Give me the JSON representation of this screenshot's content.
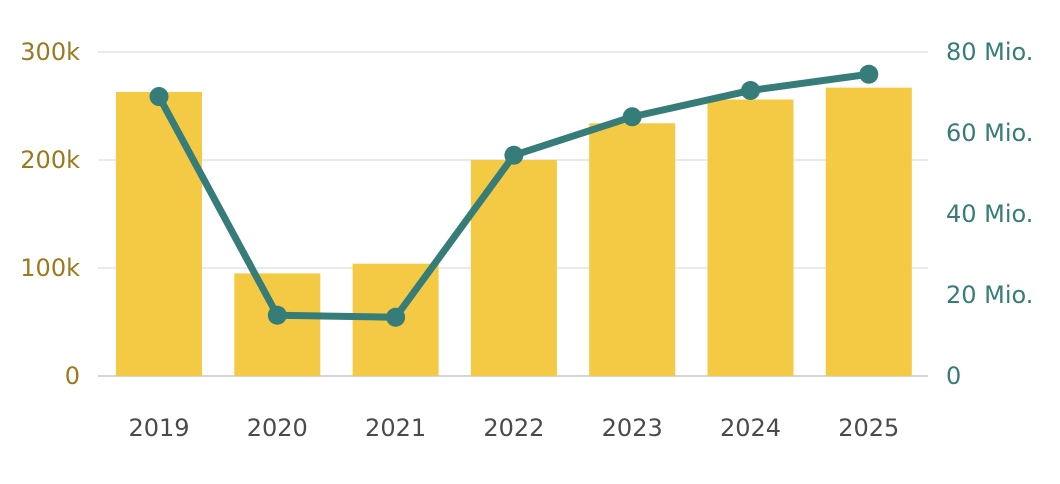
{
  "chart_data": {
    "type": "bar+line",
    "categories": [
      "2019",
      "2020",
      "2021",
      "2022",
      "2023",
      "2024",
      "2025"
    ],
    "series": [
      {
        "type": "bar",
        "axis": "left",
        "color": "#f4ca44",
        "values": [
          263000,
          95000,
          104000,
          200000,
          234000,
          256000,
          267000
        ]
      },
      {
        "type": "line",
        "axis": "right",
        "color": "#367c78",
        "values": [
          69,
          15,
          14.5,
          54.5,
          64,
          70.5,
          74.5
        ]
      }
    ],
    "left_axis": {
      "ylim": [
        0,
        300000
      ],
      "ticks": [
        0,
        100000,
        200000,
        300000
      ],
      "tick_labels": [
        "0",
        "100k",
        "200k",
        "300k"
      ],
      "color": "#9a7a1c"
    },
    "right_axis": {
      "ylim": [
        0,
        80
      ],
      "ticks": [
        0,
        20,
        40,
        60,
        80
      ],
      "tick_labels": [
        "0",
        "20 Mio.",
        "40 Mio.",
        "60 Mio.",
        "80 Mio."
      ],
      "color": "#367c78"
    },
    "grid": true,
    "grid_color": "#e3e3e3",
    "baseline_color": "#d4d4d4"
  }
}
